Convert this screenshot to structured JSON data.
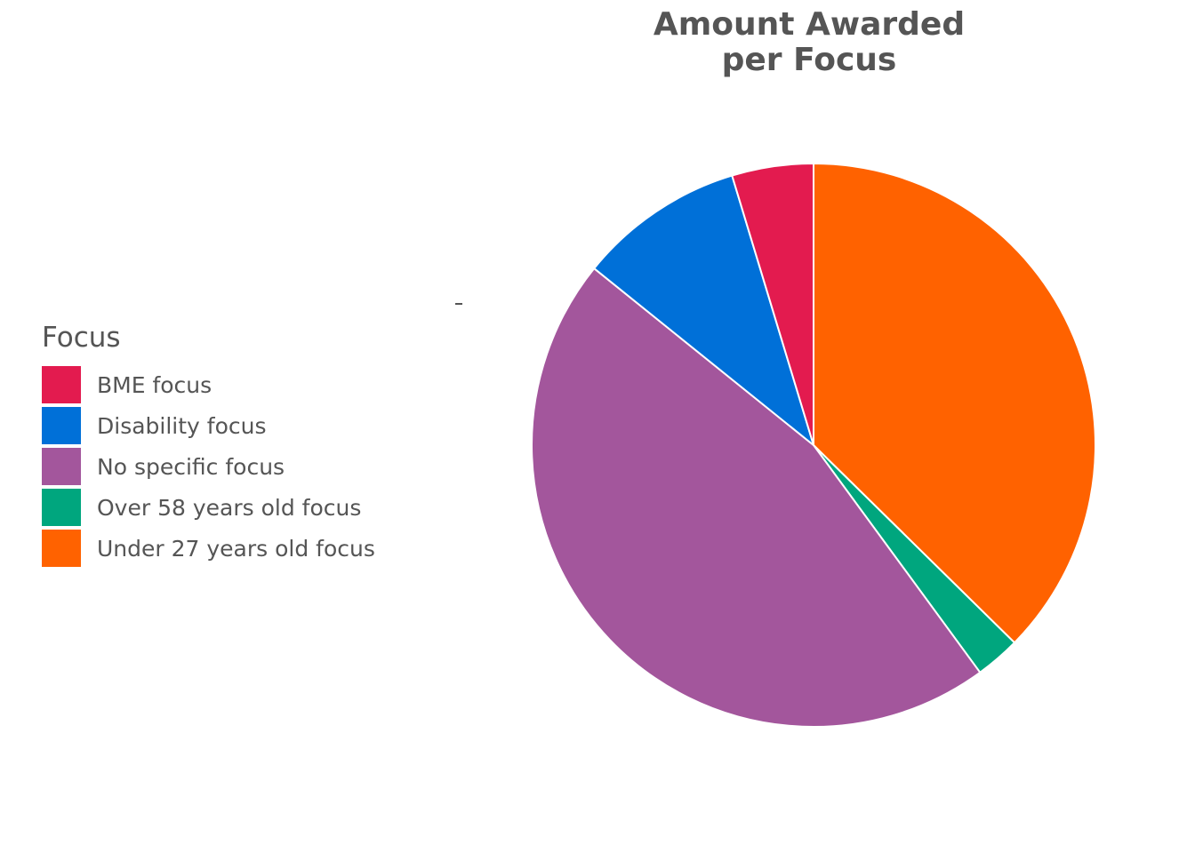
{
  "chart_data": {
    "type": "pie",
    "title_lines": [
      "Amount Awarded",
      "per Focus"
    ],
    "legend": {
      "title": "Focus",
      "placement": "left"
    },
    "slices": [
      {
        "label": "Under 27 years old focus",
        "value": 39.2,
        "color": "#FF6200"
      },
      {
        "label": "Over 58 years old focus",
        "value": 2.7,
        "color": "#00A67E"
      },
      {
        "label": "No specific focus",
        "value": 48.1,
        "color": "#A3569C"
      },
      {
        "label": "Disability focus",
        "value": 10.0,
        "color": "#0070D8"
      },
      {
        "label": "BME focus",
        "value": 4.9,
        "color": "#E31B4F"
      }
    ],
    "legend_order": [
      "BME focus",
      "Disability focus",
      "No specific focus",
      "Over 58 years old focus",
      "Under 27 years old focus"
    ]
  }
}
